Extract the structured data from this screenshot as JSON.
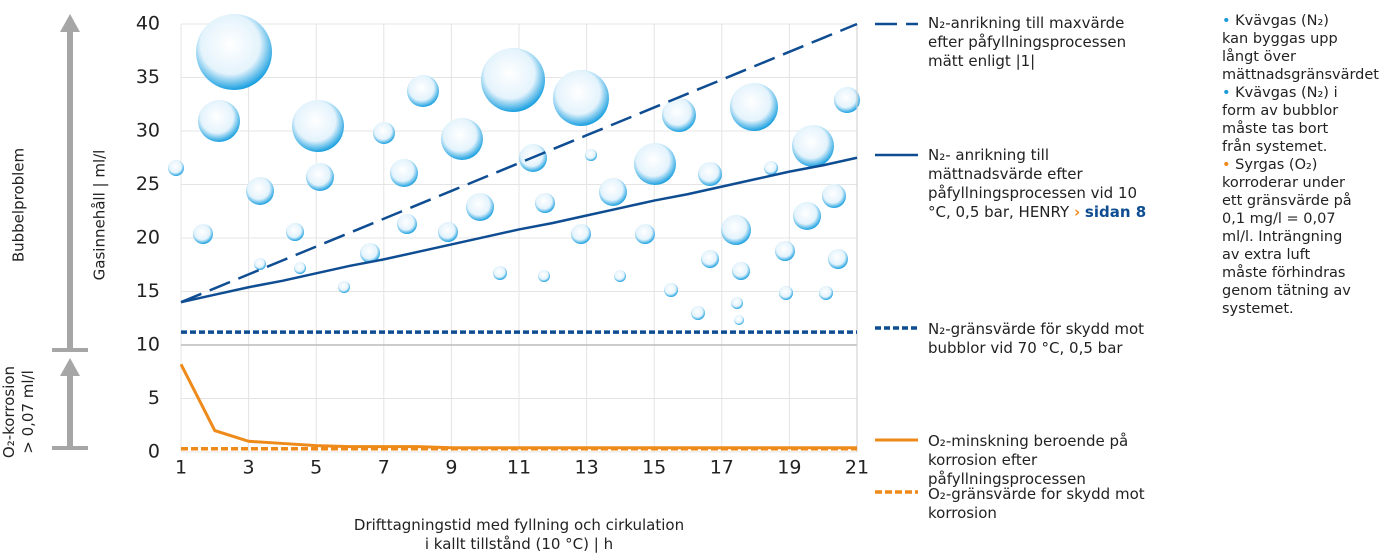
{
  "chart_data": {
    "type": "line",
    "y_axis_label": "Gasinnehåll | ml/l",
    "x_axis_label": "Drifttagningstid med fyllning och cirkulation i kallt tillstånd (10 °C) | h",
    "side_labels": [
      "Bubbelproblem",
      "O₂-korrosion > 0,07 ml/l"
    ],
    "x": [
      1,
      2,
      3,
      4,
      5,
      6,
      7,
      8,
      9,
      10,
      11,
      12,
      13,
      14,
      15,
      16,
      17,
      18,
      19,
      20,
      21
    ],
    "xlim": [
      1,
      21
    ],
    "xticks": [
      1,
      3,
      5,
      7,
      9,
      11,
      13,
      15,
      17,
      19,
      21
    ],
    "ylim": [
      0,
      40
    ],
    "yticks": [
      0,
      5,
      10,
      15,
      20,
      25,
      30,
      35,
      40
    ],
    "grid": true,
    "series": [
      {
        "name": "N₂-anrikning till maxvärde efter påfyllningsprocessen mätt enligt |1|",
        "color": "#0f4d92",
        "dash": "22 9",
        "width": 2.5,
        "values": [
          14,
          15.3,
          16.6,
          17.9,
          19.2,
          20.5,
          21.8,
          23.1,
          24.4,
          25.7,
          27,
          28.3,
          29.6,
          30.9,
          32.2,
          33.5,
          34.8,
          36.1,
          37.4,
          38.7,
          40
        ]
      },
      {
        "name": "N₂- anrikning till mättnadsvärde efter påfyllningsprocessen vid 10 °C, 0,5 bar, HENRY",
        "link": "sidan 8",
        "color": "#0f4d92",
        "dash": "none",
        "width": 2.5,
        "values": [
          14,
          14.7,
          15.4,
          16,
          16.7,
          17.4,
          18,
          18.7,
          19.4,
          20.1,
          20.8,
          21.4,
          22.1,
          22.8,
          23.5,
          24.1,
          24.8,
          25.5,
          26.2,
          26.8,
          27.5
        ]
      },
      {
        "name": "N₂-gränsvärde för skydd mot bubblor vid 70 °C, 0,5 bar",
        "color": "#0f4d92",
        "dash": "6 3",
        "width": 3.5,
        "values": [
          11.2,
          11.2,
          11.2,
          11.2,
          11.2,
          11.2,
          11.2,
          11.2,
          11.2,
          11.2,
          11.2,
          11.2,
          11.2,
          11.2,
          11.2,
          11.2,
          11.2,
          11.2,
          11.2,
          11.2,
          11.2
        ]
      },
      {
        "name": "O₂-minskning beroende på korrosion efter påfyllningsprocessen",
        "color": "#ee8a1a",
        "dash": "none",
        "width": 3,
        "values": [
          8.2,
          2,
          1,
          0.8,
          0.6,
          0.5,
          0.5,
          0.5,
          0.4,
          0.4,
          0.4,
          0.4,
          0.4,
          0.4,
          0.4,
          0.4,
          0.4,
          0.4,
          0.4,
          0.4,
          0.4
        ]
      },
      {
        "name": "O₂-gränsvärde for skydd mot korrosion",
        "color": "#ee8a1a",
        "dash": "7 3",
        "width": 3.5,
        "values": [
          0.3,
          0.3,
          0.3,
          0.3,
          0.3,
          0.3,
          0.3,
          0.3,
          0.3,
          0.3,
          0.3,
          0.3,
          0.3,
          0.3,
          0.3,
          0.3,
          0.3,
          0.3,
          0.3,
          0.3,
          0.3
        ]
      }
    ],
    "notes": [
      {
        "text": "Kvävgas (N₂) kan byggas upp långt över mättnadsgränsvärdet",
        "color": "#1a9ad6"
      },
      {
        "text": "Kvävgas (N₂) i form av bubblor måste tas bort från systemet.",
        "color": "#1a9ad6"
      },
      {
        "text": "Syrgas (O₂) korroderar under ett gränsvärde på 0,1 mg/l = 0,07 ml/l. Inträngning av extra luft måste förhindras genom tätning av systemet.",
        "color": "#ee8a1a"
      }
    ]
  }
}
